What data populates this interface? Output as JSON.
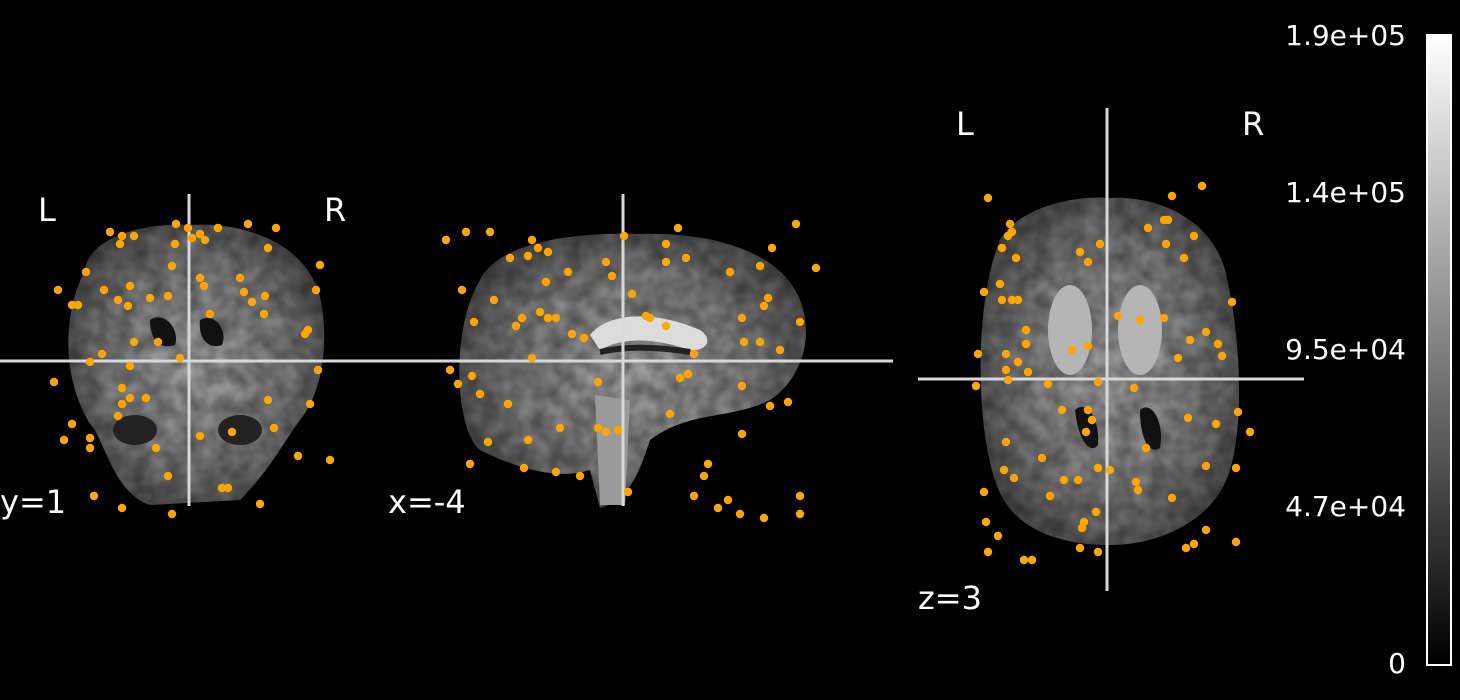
{
  "views": {
    "coronal": {
      "coord_label": "y=1",
      "left_label": "L",
      "right_label": "R"
    },
    "sagittal": {
      "coord_label": "x=-4"
    },
    "axial": {
      "coord_label": "z=3",
      "left_label": "L",
      "right_label": "R"
    }
  },
  "colorbar": {
    "ticks": [
      "1.9e+05",
      "1.4e+05",
      "9.5e+04",
      "4.7e+04",
      "0"
    ],
    "colormap": "gray"
  },
  "colors": {
    "marker": "#ffa500",
    "crosshair": "#d8d8d8",
    "background": "#000000"
  }
}
